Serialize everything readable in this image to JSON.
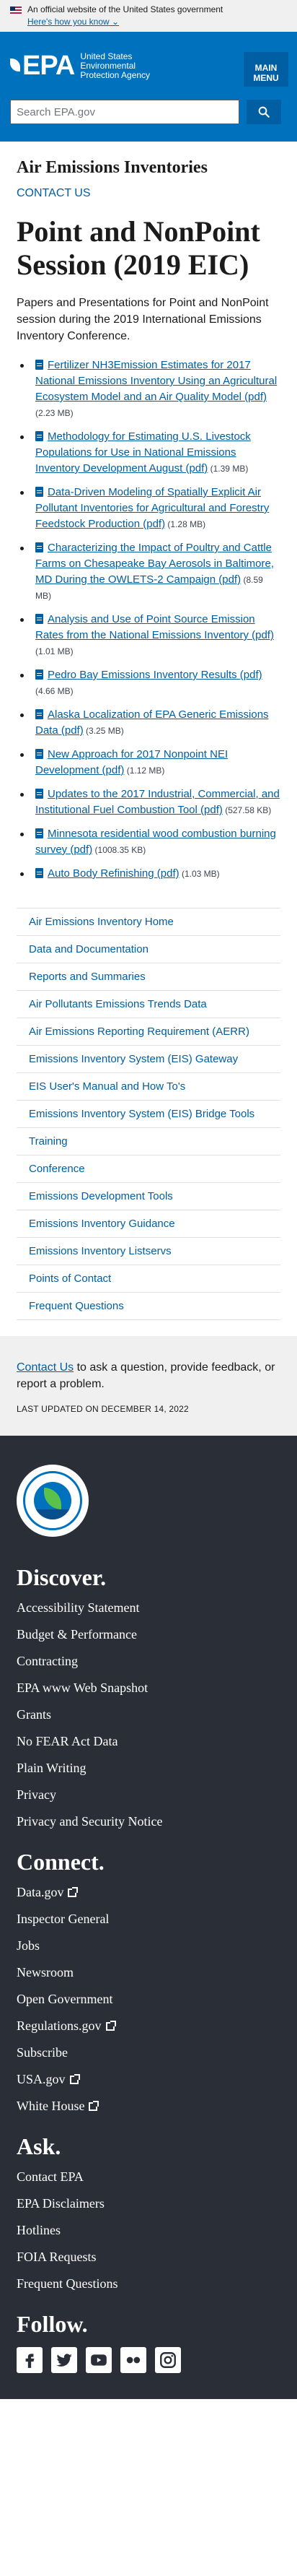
{
  "gov_banner": {
    "text": "An official website of the United States government",
    "link": "Here's how you know"
  },
  "header": {
    "logo_text": "EPA",
    "agency_name": "United States Environmental Protection Agency",
    "menu_label": "MAIN MENU",
    "search_placeholder": "Search EPA.gov"
  },
  "page": {
    "section_title": "Air Emissions Inventories",
    "contact_us": "CONTACT US",
    "title": "Point and NonPoint Session (2019 EIC)",
    "intro": "Papers and Presentations for Point and NonPoint session during the 2019 International Emissions Inventory Conference."
  },
  "documents": [
    {
      "label": "Fertilizer NH3Emission Estimates for 2017 National Emissions Inventory Using an Agricultural Ecosystem Model and an Air Quality Model (pdf)",
      "size": "(2.23 MB)"
    },
    {
      "label": "Methodology for Estimating U.S. Livestock Populations for Use in National Emissions Inventory Development August (pdf)",
      "size": "(1.39 MB)"
    },
    {
      "label": "Data-Driven Modeling of Spatially Explicit Air Pollutant Inventories for Agricultural and Forestry Feedstock Production (pdf)",
      "size": "(1.28 MB)"
    },
    {
      "label": "Characterizing the Impact of Poultry and Cattle Farms on Chesapeake Bay Aerosols in Baltimore, MD During the OWLETS-2 Campaign (pdf)",
      "size": "(8.59 MB)"
    },
    {
      "label": "Analysis and Use of Point Source Emission Rates from the National Emissions Inventory (pdf)",
      "size": "(1.01 MB)"
    },
    {
      "label": "Pedro Bay Emissions Inventory Results (pdf)",
      "size": "(4.66 MB)"
    },
    {
      "label": "Alaska Localization of EPA Generic Emissions Data (pdf)",
      "size": "(3.25 MB)"
    },
    {
      "label": "New Approach for 2017 Nonpoint NEI Development (pdf)",
      "size": "(1.12 MB)"
    },
    {
      "label": "Updates to the 2017 Industrial, Commercial, and Institutional Fuel Combustion Tool (pdf)",
      "size": "(527.58 KB)"
    },
    {
      "label": "Minnesota residential wood combustion burning survey (pdf)",
      "size": "(1008.35 KB)"
    },
    {
      "label": "Auto Body Refinishing (pdf)",
      "size": "(1.03 MB)"
    }
  ],
  "side_nav": [
    "Air Emissions Inventory Home",
    "Data and Documentation",
    "Reports and Summaries",
    "Air Pollutants Emissions Trends Data",
    "Air Emissions Reporting Requirement (AERR)",
    "Emissions Inventory System (EIS) Gateway",
    "EIS User's Manual and How To's",
    "Emissions Inventory System (EIS) Bridge Tools",
    "Training",
    "Conference",
    "Emissions Development Tools",
    "Emissions Inventory Guidance",
    "Emissions Inventory Listservs",
    "Points of Contact",
    "Frequent Questions"
  ],
  "contact_box": {
    "link": "Contact Us",
    "text": " to ask a question, provide feedback, or report a problem.",
    "last_updated": "LAST UPDATED ON DECEMBER 14, 2022"
  },
  "footer": {
    "discover": {
      "heading": "Discover.",
      "links": [
        "Accessibility Statement",
        "Budget & Performance",
        "Contracting",
        "EPA www Web Snapshot",
        "Grants",
        "No FEAR Act Data",
        "Plain Writing",
        "Privacy",
        "Privacy and Security Notice"
      ]
    },
    "connect": {
      "heading": "Connect.",
      "links": [
        {
          "label": "Data.gov",
          "external": true
        },
        {
          "label": "Inspector General",
          "external": false
        },
        {
          "label": "Jobs",
          "external": false
        },
        {
          "label": "Newsroom",
          "external": false
        },
        {
          "label": "Open Government",
          "external": false
        },
        {
          "label": "Regulations.gov",
          "external": true
        },
        {
          "label": "Subscribe",
          "external": false
        },
        {
          "label": "USA.gov",
          "external": true
        },
        {
          "label": "White House",
          "external": true
        }
      ]
    },
    "ask": {
      "heading": "Ask.",
      "links": [
        "Contact EPA",
        "EPA Disclaimers",
        "Hotlines",
        "FOIA Requests",
        "Frequent Questions"
      ]
    },
    "follow": {
      "heading": "Follow.",
      "icons": [
        "facebook-icon",
        "twitter-icon",
        "youtube-icon",
        "flickr-icon",
        "instagram-icon"
      ]
    }
  },
  "colors": {
    "header_blue": "#0071bc",
    "link_blue": "#005ea2",
    "footer_bg": "#2a2e36",
    "banner_bg": "#f0f0f0"
  }
}
